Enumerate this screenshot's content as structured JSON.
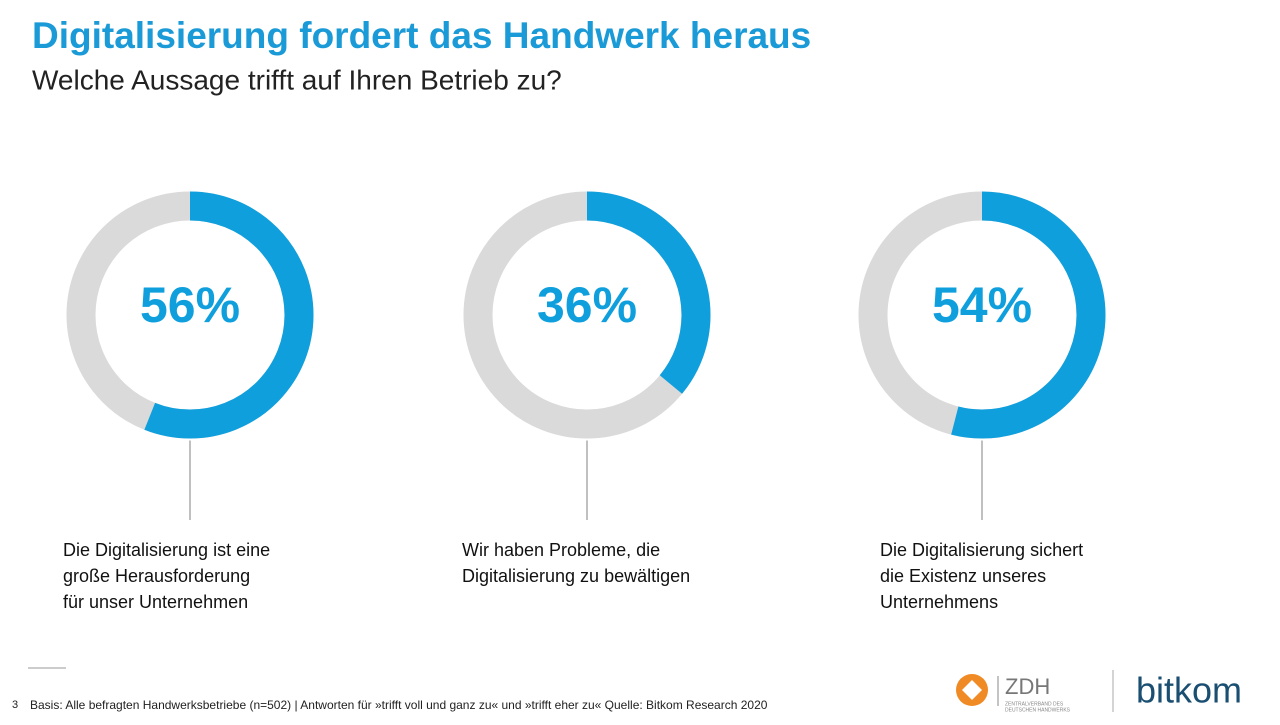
{
  "title": "Digitalisierung fordert das Handwerk heraus",
  "subtitle": "Welche Aussage trifft auf Ihren Betrieb zu?",
  "chart_data": [
    {
      "type": "donut",
      "values": [
        56
      ],
      "value_labels": [
        "56%"
      ],
      "color": "#0f9fdd",
      "track_color": "#dadada",
      "caption": [
        "Die Digitalisierung ist eine",
        "große Herausforderung",
        "für unser Unternehmen"
      ]
    },
    {
      "type": "donut",
      "values": [
        36
      ],
      "value_labels": [
        "36%"
      ],
      "color": "#0f9fdd",
      "track_color": "#dadada",
      "caption": [
        "Wir haben Probleme, die",
        "Digitalisierung zu bewältigen"
      ]
    },
    {
      "type": "donut",
      "values": [
        54
      ],
      "value_labels": [
        "54%"
      ],
      "color": "#0f9fdd",
      "track_color": "#dadada",
      "caption": [
        "Die Digitalisierung sichert",
        "die Existenz unseres",
        "Unternehmens"
      ]
    }
  ],
  "footer": {
    "page": "3",
    "note": "Basis: Alle befragten Handwerksbetriebe (n=502) | Antworten für »trifft voll und ganz zu« und »trifft eher zu« Quelle: Bitkom Research 2020",
    "logo_zdh": "ZDH",
    "logo_zdh_sub": [
      "ZENTRALVERBAND DES",
      "DEUTSCHEN HANDWERKS"
    ],
    "logo_bitkom": "bitkom"
  }
}
